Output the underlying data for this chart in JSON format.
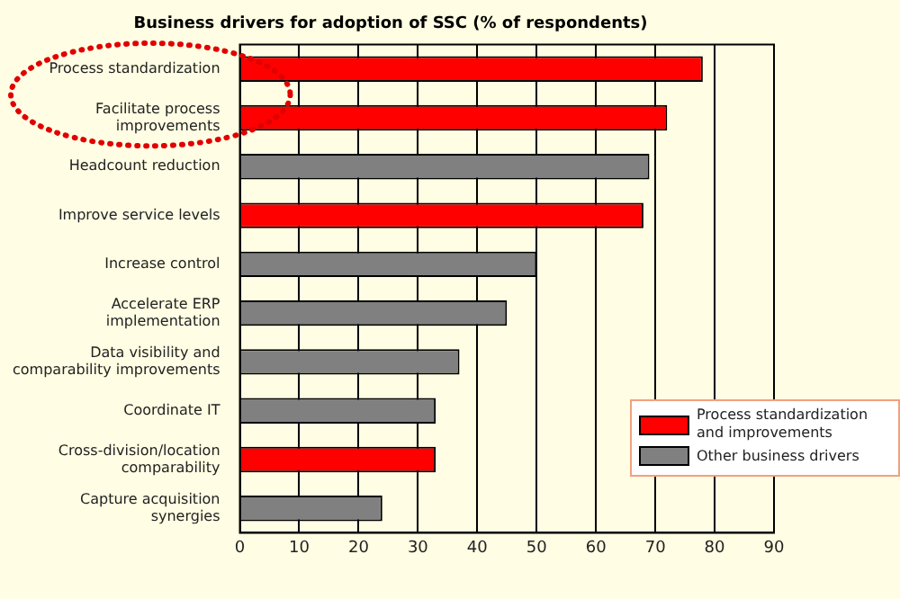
{
  "chart_data": {
    "type": "bar",
    "orientation": "horizontal",
    "stacked": true,
    "title": "Business drivers for adoption of SSC (% of respondents)",
    "categories": [
      "Process standardization",
      "Facilitate process improvements",
      "Headcount reduction",
      "Improve service levels",
      "Increase control",
      "Accelerate ERP implementation",
      "Data visibility and comparability improvements",
      "Coordinate IT",
      "Cross-division/location comparability",
      "Capture acquisition synergies"
    ],
    "series": [
      {
        "name": "Process standardization and improvements",
        "color": "#ff0000",
        "values": [
          78,
          72,
          null,
          68,
          null,
          null,
          null,
          null,
          33,
          null
        ]
      },
      {
        "name": "Other business drivers",
        "color": "#808080",
        "values": [
          null,
          null,
          69,
          null,
          50,
          45,
          37,
          33,
          null,
          24
        ]
      }
    ],
    "xlim": [
      0,
      90
    ],
    "xticks": [
      0,
      10,
      20,
      30,
      40,
      50,
      60,
      70,
      80,
      90
    ],
    "grid": "x",
    "legend": "bottom right"
  }
}
